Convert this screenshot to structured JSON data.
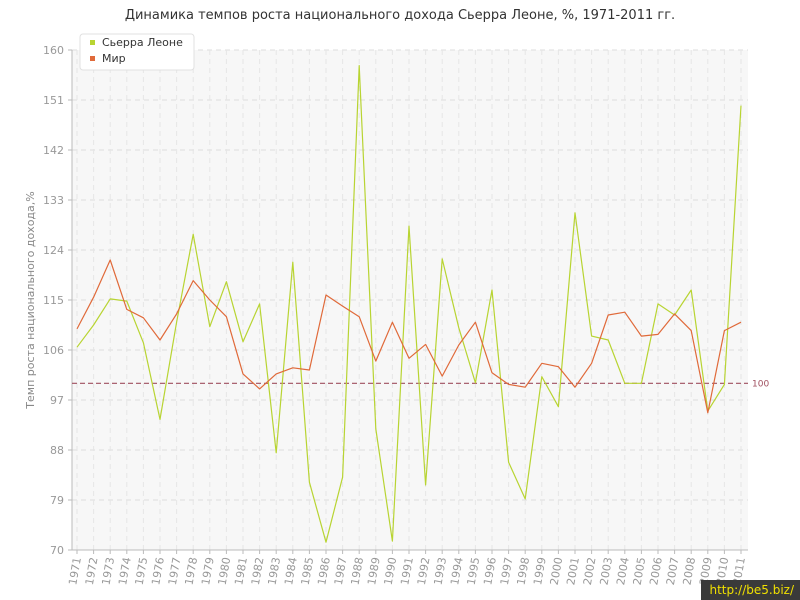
{
  "watermark": "http://be5.biz/",
  "chart_data": {
    "type": "line",
    "title": "Динамика темпов роста национального дохода Сьерра Леоне, %, 1971-2011 гг.",
    "ylabel": "Темп роста национального дохода,%",
    "xlabel": "",
    "ylim": [
      70,
      160
    ],
    "yticks": [
      70,
      79,
      88,
      97,
      106,
      115,
      124,
      133,
      142,
      151,
      160
    ],
    "x": [
      1971,
      1972,
      1973,
      1974,
      1975,
      1976,
      1977,
      1978,
      1979,
      1980,
      1981,
      1982,
      1983,
      1984,
      1985,
      1986,
      1987,
      1988,
      1989,
      1990,
      1991,
      1992,
      1993,
      1994,
      1995,
      1996,
      1997,
      1998,
      1999,
      2000,
      2001,
      2002,
      2003,
      2004,
      2005,
      2006,
      2007,
      2008,
      2009,
      2010,
      2011
    ],
    "grid": true,
    "legend_position": "top-left",
    "reference_line": {
      "value": 100,
      "label": "100",
      "color": "#a05060"
    },
    "series": [
      {
        "name": "Сьерра Леоне",
        "color": "#b8d432",
        "values": [
          106.5,
          110.5,
          115.2,
          114.8,
          107.3,
          93.5,
          111,
          126.8,
          110.2,
          118.3,
          107.5,
          114.3,
          87.5,
          121.8,
          82.2,
          71.4,
          83.1,
          157.2,
          91.8,
          71.6,
          128.3,
          81.7,
          122.4,
          110,
          100.1,
          116.8,
          85.8,
          79.2,
          101.2,
          95.8,
          130.7,
          108.5,
          107.8,
          100,
          100,
          114.3,
          112.3,
          116.8,
          95,
          99.8,
          150
        ]
      },
      {
        "name": "Мир",
        "color": "#e06a3a",
        "values": [
          109.8,
          115.5,
          122.2,
          113.3,
          111.8,
          107.8,
          112.5,
          118.5,
          115,
          112,
          101.7,
          99,
          101.7,
          102.8,
          102.4,
          115.9,
          113.9,
          112,
          104,
          111,
          104.5,
          107,
          101.3,
          106.9,
          111,
          101.9,
          99.8,
          99.3,
          103.6,
          103,
          99.3,
          103.6,
          112.3,
          112.8,
          108.5,
          108.8,
          112.5,
          109.5,
          94.7,
          109.5,
          111
        ]
      }
    ]
  }
}
